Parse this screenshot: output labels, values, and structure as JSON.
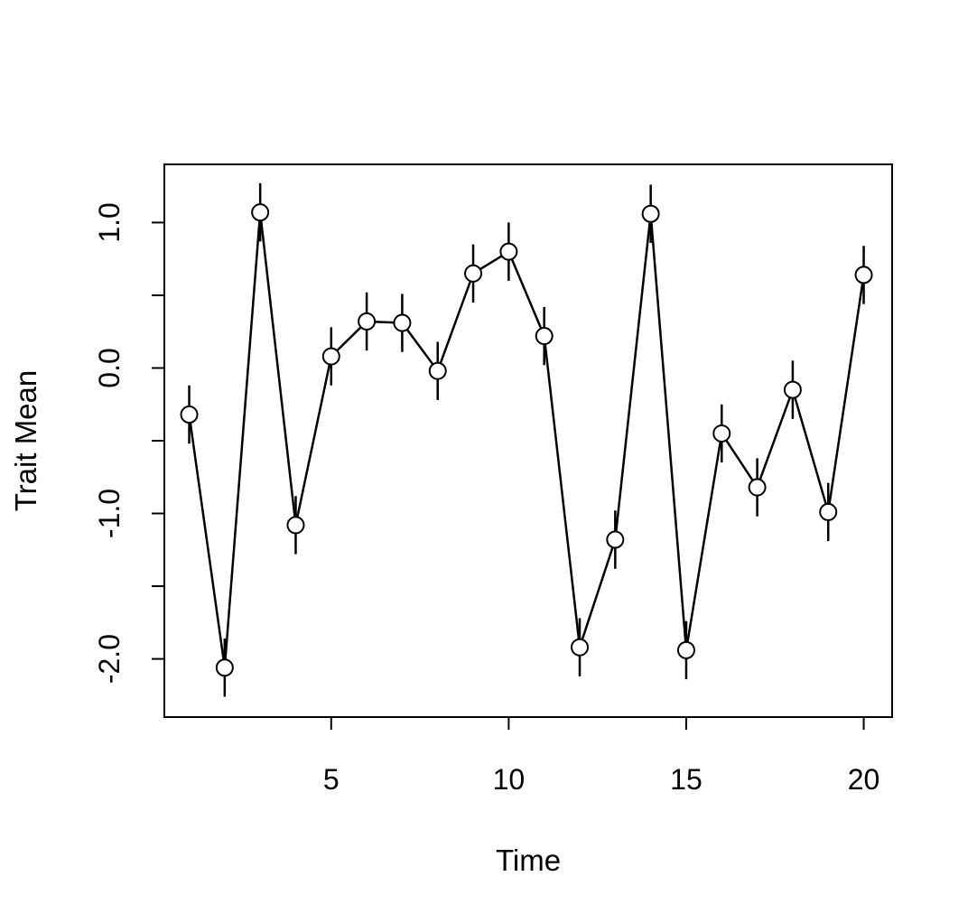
{
  "chart_data": {
    "type": "line",
    "title": "",
    "xlabel": "Time",
    "ylabel": "Trait Mean",
    "xlim": [
      0.3,
      20.8
    ],
    "ylim": [
      -2.4,
      1.4
    ],
    "x_ticks": [
      5,
      10,
      15,
      20
    ],
    "x_tick_labels": [
      "5",
      "10",
      "15",
      "20"
    ],
    "y_ticks": [
      -2.0,
      -1.5,
      -1.0,
      -0.5,
      0.0,
      0.5,
      1.0
    ],
    "y_tick_labels": [
      "-2.0",
      "",
      "-1.0",
      "",
      "0.0",
      "",
      "1.0"
    ],
    "grid": false,
    "series": [
      {
        "x": [
          1,
          2,
          3,
          4,
          5,
          6,
          7,
          8,
          9,
          10,
          11,
          12,
          13,
          14,
          15,
          16,
          17,
          18,
          19,
          20
        ],
        "y": [
          -0.32,
          -2.06,
          1.07,
          -1.08,
          0.08,
          0.32,
          0.31,
          -0.02,
          0.65,
          0.8,
          0.22,
          -1.92,
          -1.18,
          1.06,
          -1.94,
          -0.45,
          -0.82,
          -0.15,
          -0.99,
          0.64
        ],
        "error": [
          0.2,
          0.2,
          0.2,
          0.2,
          0.2,
          0.2,
          0.2,
          0.2,
          0.2,
          0.2,
          0.2,
          0.2,
          0.2,
          0.2,
          0.2,
          0.2,
          0.2,
          0.2,
          0.2,
          0.2
        ]
      }
    ],
    "colors": {
      "line": "#000000",
      "marker_fill": "#ffffff",
      "marker_stroke": "#000000"
    }
  }
}
